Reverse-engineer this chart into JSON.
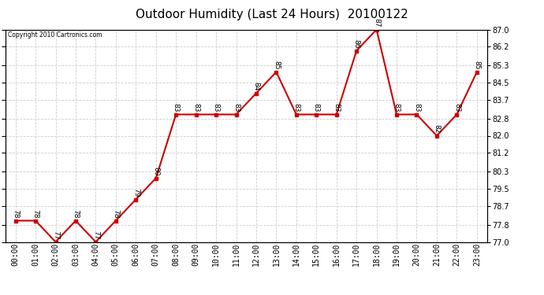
{
  "title": "Outdoor Humidity (Last 24 Hours)  20100122",
  "copyright": "Copyright 2010 Cartronics.com",
  "hours": [
    "00:00",
    "01:00",
    "02:00",
    "03:00",
    "04:00",
    "05:00",
    "06:00",
    "07:00",
    "08:00",
    "09:00",
    "10:00",
    "11:00",
    "12:00",
    "13:00",
    "14:00",
    "15:00",
    "16:00",
    "17:00",
    "18:00",
    "19:00",
    "20:00",
    "21:00",
    "22:00",
    "23:00"
  ],
  "values": [
    78,
    78,
    77,
    78,
    77,
    78,
    79,
    80,
    83,
    83,
    83,
    83,
    84,
    85,
    83,
    83,
    83,
    86,
    87,
    83,
    83,
    82,
    83,
    85
  ],
  "line_color": "#cc0000",
  "marker": "s",
  "marker_size": 3,
  "background_color": "#ffffff",
  "grid_color": "#cccccc",
  "ylim_min": 77.0,
  "ylim_max": 87.0,
  "yticks": [
    77.0,
    77.8,
    78.7,
    79.5,
    80.3,
    81.2,
    82.0,
    82.8,
    83.7,
    84.5,
    85.3,
    86.2,
    87.0
  ],
  "title_fontsize": 11,
  "tick_fontsize": 7,
  "annotation_fontsize": 6.5
}
